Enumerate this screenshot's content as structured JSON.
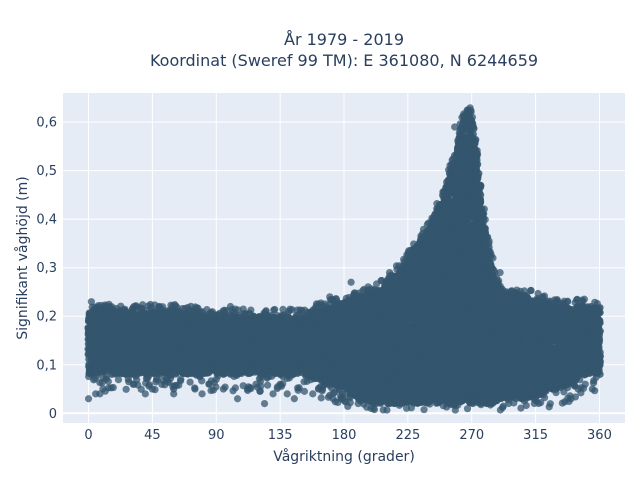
{
  "chart_data": {
    "type": "scatter",
    "title_line1": "År 1979 - 2019",
    "title_line2": "Koordinat (Sweref 99 TM): E 361080, N 6244659",
    "xlabel": "Vågriktning (grader)",
    "ylabel": "Signifikant våghöjd (m)",
    "xlim": [
      -18,
      378
    ],
    "ylim": [
      -0.02,
      0.66
    ],
    "x_ticks": [
      0,
      45,
      90,
      135,
      180,
      225,
      270,
      315,
      360
    ],
    "x_tick_labels": [
      "0",
      "45",
      "90",
      "135",
      "180",
      "225",
      "270",
      "315",
      "360"
    ],
    "y_ticks": [
      0,
      0.1,
      0.2,
      0.3,
      0.4,
      0.5,
      0.6
    ],
    "y_tick_labels": [
      "0",
      "0,1",
      "0,2",
      "0,3",
      "0,4",
      "0,5",
      "0,6"
    ],
    "grid": true,
    "legend": "none",
    "colors": {
      "marker": "#34566d",
      "plot_bg": "#e5ecf6",
      "grid": "#ffffff",
      "text": "#2a3f5f"
    },
    "series": [
      {
        "envelope": [
          [
            0,
            0.08,
            0.21
          ],
          [
            10,
            0.08,
            0.21
          ],
          [
            20,
            0.08,
            0.21
          ],
          [
            30,
            0.08,
            0.21
          ],
          [
            40,
            0.08,
            0.21
          ],
          [
            50,
            0.08,
            0.21
          ],
          [
            60,
            0.08,
            0.21
          ],
          [
            70,
            0.08,
            0.21
          ],
          [
            80,
            0.08,
            0.2
          ],
          [
            90,
            0.08,
            0.2
          ],
          [
            100,
            0.08,
            0.2
          ],
          [
            110,
            0.08,
            0.2
          ],
          [
            120,
            0.08,
            0.2
          ],
          [
            130,
            0.08,
            0.2
          ],
          [
            140,
            0.08,
            0.2
          ],
          [
            150,
            0.08,
            0.2
          ],
          [
            160,
            0.07,
            0.21
          ],
          [
            170,
            0.06,
            0.22
          ],
          [
            180,
            0.05,
            0.23
          ],
          [
            190,
            0.03,
            0.24
          ],
          [
            200,
            0.02,
            0.25
          ],
          [
            210,
            0.02,
            0.27
          ],
          [
            220,
            0.02,
            0.3
          ],
          [
            230,
            0.02,
            0.34
          ],
          [
            240,
            0.02,
            0.38
          ],
          [
            250,
            0.02,
            0.45
          ],
          [
            255,
            0.02,
            0.5
          ],
          [
            260,
            0.02,
            0.56
          ],
          [
            265,
            0.02,
            0.62
          ],
          [
            268,
            0.02,
            0.63
          ],
          [
            272,
            0.02,
            0.58
          ],
          [
            275,
            0.02,
            0.5
          ],
          [
            280,
            0.02,
            0.38
          ],
          [
            285,
            0.02,
            0.29
          ],
          [
            290,
            0.03,
            0.26
          ],
          [
            300,
            0.03,
            0.25
          ],
          [
            310,
            0.03,
            0.24
          ],
          [
            320,
            0.04,
            0.23
          ],
          [
            330,
            0.05,
            0.22
          ],
          [
            340,
            0.06,
            0.22
          ],
          [
            350,
            0.08,
            0.22
          ],
          [
            360,
            0.08,
            0.22
          ]
        ],
        "outliers": [
          [
            0,
            0.03
          ],
          [
            5,
            0.04
          ],
          [
            8,
            0.04
          ],
          [
            2,
            0.23
          ],
          [
            15,
            0.22
          ],
          [
            25,
            0.21
          ],
          [
            28,
            0.07
          ],
          [
            32,
            0.06
          ],
          [
            40,
            0.04
          ],
          [
            45,
            0.05
          ],
          [
            50,
            0.22
          ],
          [
            55,
            0.07
          ],
          [
            60,
            0.04
          ],
          [
            65,
            0.07
          ],
          [
            75,
            0.05
          ],
          [
            80,
            0.04
          ],
          [
            85,
            0.06
          ],
          [
            90,
            0.07
          ],
          [
            95,
            0.05
          ],
          [
            100,
            0.22
          ],
          [
            105,
            0.03
          ],
          [
            112,
            0.05
          ],
          [
            118,
            0.06
          ],
          [
            124,
            0.02
          ],
          [
            130,
            0.04
          ],
          [
            135,
            0.06
          ],
          [
            140,
            0.04
          ],
          [
            145,
            0.03
          ],
          [
            150,
            0.2
          ],
          [
            158,
            0.04
          ],
          [
            162,
            0.05
          ],
          [
            170,
            0.24
          ],
          [
            178,
            0.03
          ],
          [
            185,
            0.27
          ],
          [
            190,
            0.02
          ],
          [
            300,
            0.04
          ],
          [
            310,
            0.05
          ],
          [
            320,
            0.24
          ],
          [
            325,
            0.06
          ],
          [
            330,
            0.23
          ],
          [
            340,
            0.03
          ],
          [
            345,
            0.05
          ],
          [
            350,
            0.06
          ],
          [
            355,
            0.05
          ],
          [
            285,
            0.32
          ],
          [
            290,
            0.29
          ],
          [
            280,
            0.35
          ],
          [
            258,
            0.59
          ]
        ]
      }
    ]
  }
}
